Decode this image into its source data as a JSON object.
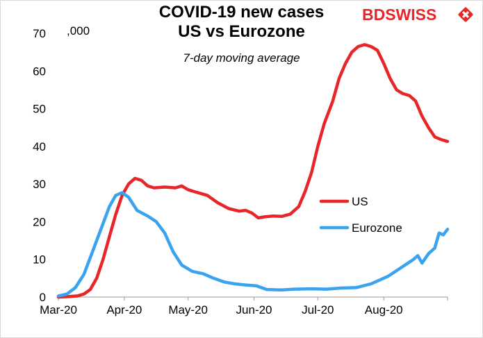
{
  "chart_data": {
    "type": "line",
    "title_lines": [
      "COVID-19 new cases",
      "US vs Eurozone"
    ],
    "subtitle": "7-day moving average",
    "unit_label": ",000",
    "xlabel": "",
    "ylabel": "",
    "ylim": [
      0,
      70
    ],
    "yticks": [
      0,
      10,
      20,
      30,
      40,
      50,
      60,
      70
    ],
    "x_range": [
      "2020-03-01",
      "2020-08-31"
    ],
    "x_ticks": [
      {
        "label": "Mar-20",
        "date": "2020-03-01"
      },
      {
        "label": "Apr-20",
        "date": "2020-04-01"
      },
      {
        "label": "May-20",
        "date": "2020-05-01"
      },
      {
        "label": "Jun-20",
        "date": "2020-06-01"
      },
      {
        "label": "Jul-20",
        "date": "2020-07-01"
      },
      {
        "label": "Aug-20",
        "date": "2020-08-01"
      }
    ],
    "grid": false,
    "legend_position": "right",
    "series": [
      {
        "name": "US",
        "color": "#e8262a",
        "points": [
          [
            "2020-03-01",
            0
          ],
          [
            "2020-03-05",
            0.1
          ],
          [
            "2020-03-10",
            0.3
          ],
          [
            "2020-03-13",
            0.8
          ],
          [
            "2020-03-16",
            2
          ],
          [
            "2020-03-19",
            5
          ],
          [
            "2020-03-22",
            10
          ],
          [
            "2020-03-25",
            16
          ],
          [
            "2020-03-28",
            22
          ],
          [
            "2020-03-31",
            27
          ],
          [
            "2020-04-03",
            30
          ],
          [
            "2020-04-06",
            31.5
          ],
          [
            "2020-04-09",
            31
          ],
          [
            "2020-04-12",
            29.5
          ],
          [
            "2020-04-15",
            29
          ],
          [
            "2020-04-20",
            29.2
          ],
          [
            "2020-04-25",
            29
          ],
          [
            "2020-04-28",
            29.5
          ],
          [
            "2020-05-01",
            28.5
          ],
          [
            "2020-05-05",
            27.8
          ],
          [
            "2020-05-10",
            27
          ],
          [
            "2020-05-15",
            25
          ],
          [
            "2020-05-20",
            23.5
          ],
          [
            "2020-05-25",
            22.8
          ],
          [
            "2020-05-28",
            23
          ],
          [
            "2020-05-31",
            22.3
          ],
          [
            "2020-06-03",
            21
          ],
          [
            "2020-06-06",
            21.3
          ],
          [
            "2020-06-10",
            21.5
          ],
          [
            "2020-06-14",
            21.4
          ],
          [
            "2020-06-18",
            22
          ],
          [
            "2020-06-22",
            24
          ],
          [
            "2020-06-25",
            28
          ],
          [
            "2020-06-28",
            33
          ],
          [
            "2020-07-01",
            40
          ],
          [
            "2020-07-04",
            46
          ],
          [
            "2020-07-08",
            52
          ],
          [
            "2020-07-11",
            58
          ],
          [
            "2020-07-14",
            62
          ],
          [
            "2020-07-17",
            65
          ],
          [
            "2020-07-20",
            66.5
          ],
          [
            "2020-07-23",
            67
          ],
          [
            "2020-07-26",
            66.5
          ],
          [
            "2020-07-29",
            65.5
          ],
          [
            "2020-08-01",
            62
          ],
          [
            "2020-08-04",
            58
          ],
          [
            "2020-08-07",
            55
          ],
          [
            "2020-08-10",
            54
          ],
          [
            "2020-08-13",
            53.5
          ],
          [
            "2020-08-16",
            52
          ],
          [
            "2020-08-19",
            48
          ],
          [
            "2020-08-22",
            45
          ],
          [
            "2020-08-25",
            42.5
          ],
          [
            "2020-08-28",
            41.8
          ],
          [
            "2020-08-31",
            41.3
          ]
        ]
      },
      {
        "name": "Eurozone",
        "color": "#3aa3f0",
        "points": [
          [
            "2020-03-01",
            0.3
          ],
          [
            "2020-03-05",
            0.8
          ],
          [
            "2020-03-09",
            2.5
          ],
          [
            "2020-03-13",
            6
          ],
          [
            "2020-03-17",
            12
          ],
          [
            "2020-03-21",
            18
          ],
          [
            "2020-03-25",
            24
          ],
          [
            "2020-03-28",
            27
          ],
          [
            "2020-03-31",
            27.7
          ],
          [
            "2020-04-03",
            26.5
          ],
          [
            "2020-04-07",
            23
          ],
          [
            "2020-04-12",
            21.5
          ],
          [
            "2020-04-16",
            20
          ],
          [
            "2020-04-20",
            17
          ],
          [
            "2020-04-24",
            12
          ],
          [
            "2020-04-28",
            8.5
          ],
          [
            "2020-05-03",
            6.8
          ],
          [
            "2020-05-08",
            6.2
          ],
          [
            "2020-05-13",
            5
          ],
          [
            "2020-05-18",
            4
          ],
          [
            "2020-05-23",
            3.5
          ],
          [
            "2020-05-28",
            3.2
          ],
          [
            "2020-06-02",
            3
          ],
          [
            "2020-06-07",
            2
          ],
          [
            "2020-06-14",
            1.9
          ],
          [
            "2020-06-20",
            2.1
          ],
          [
            "2020-06-28",
            2.2
          ],
          [
            "2020-07-05",
            2.1
          ],
          [
            "2020-07-12",
            2.4
          ],
          [
            "2020-07-19",
            2.5
          ],
          [
            "2020-07-26",
            3.5
          ],
          [
            "2020-07-30",
            4.5
          ],
          [
            "2020-08-03",
            5.5
          ],
          [
            "2020-08-07",
            7
          ],
          [
            "2020-08-11",
            8.5
          ],
          [
            "2020-08-15",
            10
          ],
          [
            "2020-08-17",
            11
          ],
          [
            "2020-08-19",
            9
          ],
          [
            "2020-08-22",
            11.5
          ],
          [
            "2020-08-25",
            13
          ],
          [
            "2020-08-27",
            17
          ],
          [
            "2020-08-29",
            16.5
          ],
          [
            "2020-08-31",
            18
          ]
        ]
      }
    ]
  },
  "logo": {
    "text_bold": "BD",
    "text_rest": "SWISS",
    "color": "#e8262a"
  }
}
